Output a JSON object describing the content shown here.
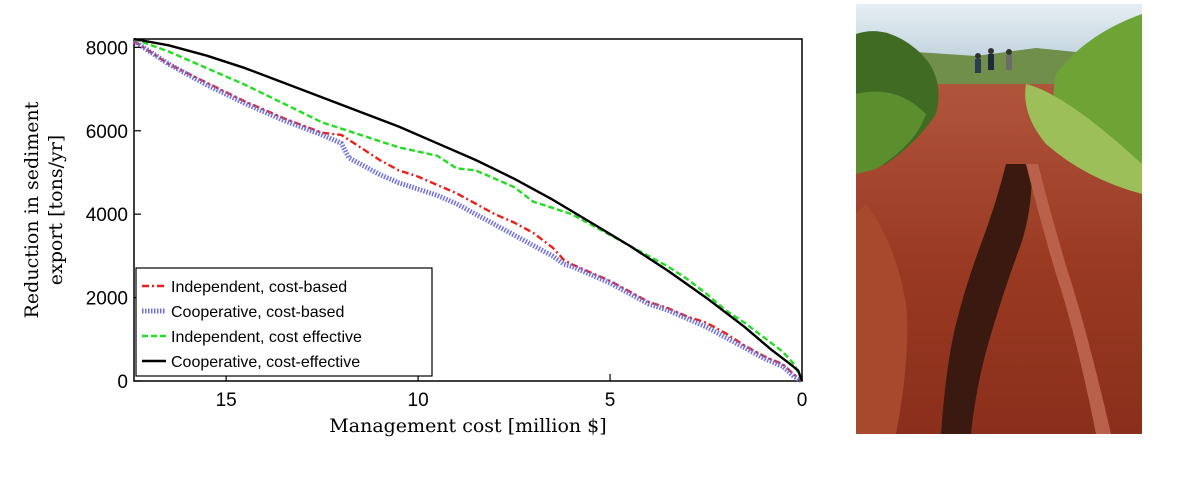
{
  "chart_data": {
    "type": "line",
    "title": "",
    "xlabel": "Management cost [million $]",
    "ylabel_line1": "Reduction in sediment",
    "ylabel_line2": "export [tons/yr]",
    "x_reversed": true,
    "xlim": [
      17.4,
      0
    ],
    "ylim": [
      0,
      8200
    ],
    "x_ticks": [
      15,
      10,
      5,
      0
    ],
    "y_ticks": [
      0,
      2000,
      4000,
      6000,
      8000
    ],
    "grid": false,
    "legend_position": "bottom-left",
    "series": [
      {
        "name": "Independent, cost-based",
        "color": "#e8201a",
        "style": "dash-dot",
        "x": [
          17.4,
          16.5,
          15.5,
          14.5,
          13.5,
          12.5,
          12.0,
          11.5,
          11.0,
          10.5,
          10.0,
          9.5,
          9.0,
          8.5,
          8.0,
          7.5,
          7.0,
          6.5,
          6.2,
          6.0,
          5.5,
          5.0,
          4.5,
          4.0,
          3.5,
          3.0,
          2.5,
          2.0,
          1.5,
          1.0,
          0.5,
          0.2,
          0.0
        ],
        "y": [
          8150,
          7600,
          7150,
          6700,
          6300,
          5950,
          5900,
          5600,
          5300,
          5050,
          4900,
          4700,
          4500,
          4250,
          4000,
          3800,
          3550,
          3200,
          2900,
          2800,
          2600,
          2400,
          2150,
          1900,
          1750,
          1550,
          1400,
          1150,
          850,
          600,
          400,
          150,
          0
        ]
      },
      {
        "name": "Cooperative, cost-based",
        "color": "#6f6fe0",
        "style": "hatched",
        "x": [
          17.4,
          16.5,
          15.5,
          14.5,
          13.5,
          12.5,
          12.0,
          11.8,
          11.5,
          11.0,
          10.5,
          10.0,
          9.5,
          9.0,
          8.5,
          8.0,
          7.5,
          7.0,
          6.5,
          6.2,
          6.0,
          5.5,
          5.0,
          4.5,
          4.0,
          3.5,
          3.0,
          2.5,
          2.0,
          1.5,
          1.0,
          0.5,
          0.2,
          0.0
        ],
        "y": [
          8150,
          7600,
          7100,
          6650,
          6250,
          5900,
          5700,
          5350,
          5200,
          4950,
          4750,
          4600,
          4450,
          4250,
          4000,
          3750,
          3500,
          3250,
          3000,
          2800,
          2750,
          2550,
          2350,
          2100,
          1850,
          1700,
          1500,
          1300,
          1050,
          800,
          550,
          350,
          100,
          0
        ]
      },
      {
        "name": "Independent, cost effective",
        "color": "#22dd22",
        "style": "dashed",
        "x": [
          17.4,
          16.5,
          15.5,
          14.5,
          13.5,
          12.5,
          11.5,
          10.5,
          10.0,
          9.5,
          9.0,
          8.5,
          8.0,
          7.5,
          7.0,
          6.5,
          6.0,
          5.5,
          5.0,
          4.5,
          4.0,
          3.5,
          3.0,
          2.5,
          2.0,
          1.5,
          1.0,
          0.5,
          0.2,
          0.0
        ],
        "y": [
          8200,
          7900,
          7500,
          7100,
          6650,
          6200,
          5900,
          5600,
          5500,
          5400,
          5100,
          5050,
          4850,
          4650,
          4300,
          4150,
          4000,
          3750,
          3500,
          3250,
          3000,
          2750,
          2450,
          2100,
          1700,
          1400,
          1050,
          700,
          400,
          0
        ]
      },
      {
        "name": "Cooperative, cost-effective",
        "color": "#000000",
        "style": "solid",
        "x": [
          17.4,
          16.5,
          15.5,
          14.5,
          13.5,
          12.5,
          11.5,
          10.5,
          9.5,
          8.5,
          7.5,
          6.5,
          5.5,
          4.5,
          3.5,
          2.5,
          1.5,
          0.8,
          0.3,
          0.1,
          0.0
        ],
        "y": [
          8200,
          8050,
          7800,
          7500,
          7150,
          6800,
          6450,
          6100,
          5700,
          5300,
          4850,
          4350,
          3800,
          3250,
          2650,
          2000,
          1300,
          750,
          400,
          250,
          0
        ]
      }
    ]
  },
  "photo": {
    "subject": "eroded red-dirt trail with gully, people walking in distance",
    "colors": {
      "sky": "#cfe0ea",
      "grass": "#7fb046",
      "dark_grass": "#3f6b22",
      "soil": "#9a3a22",
      "soil_light": "#b9614a",
      "gully": "#3a1a10"
    }
  }
}
